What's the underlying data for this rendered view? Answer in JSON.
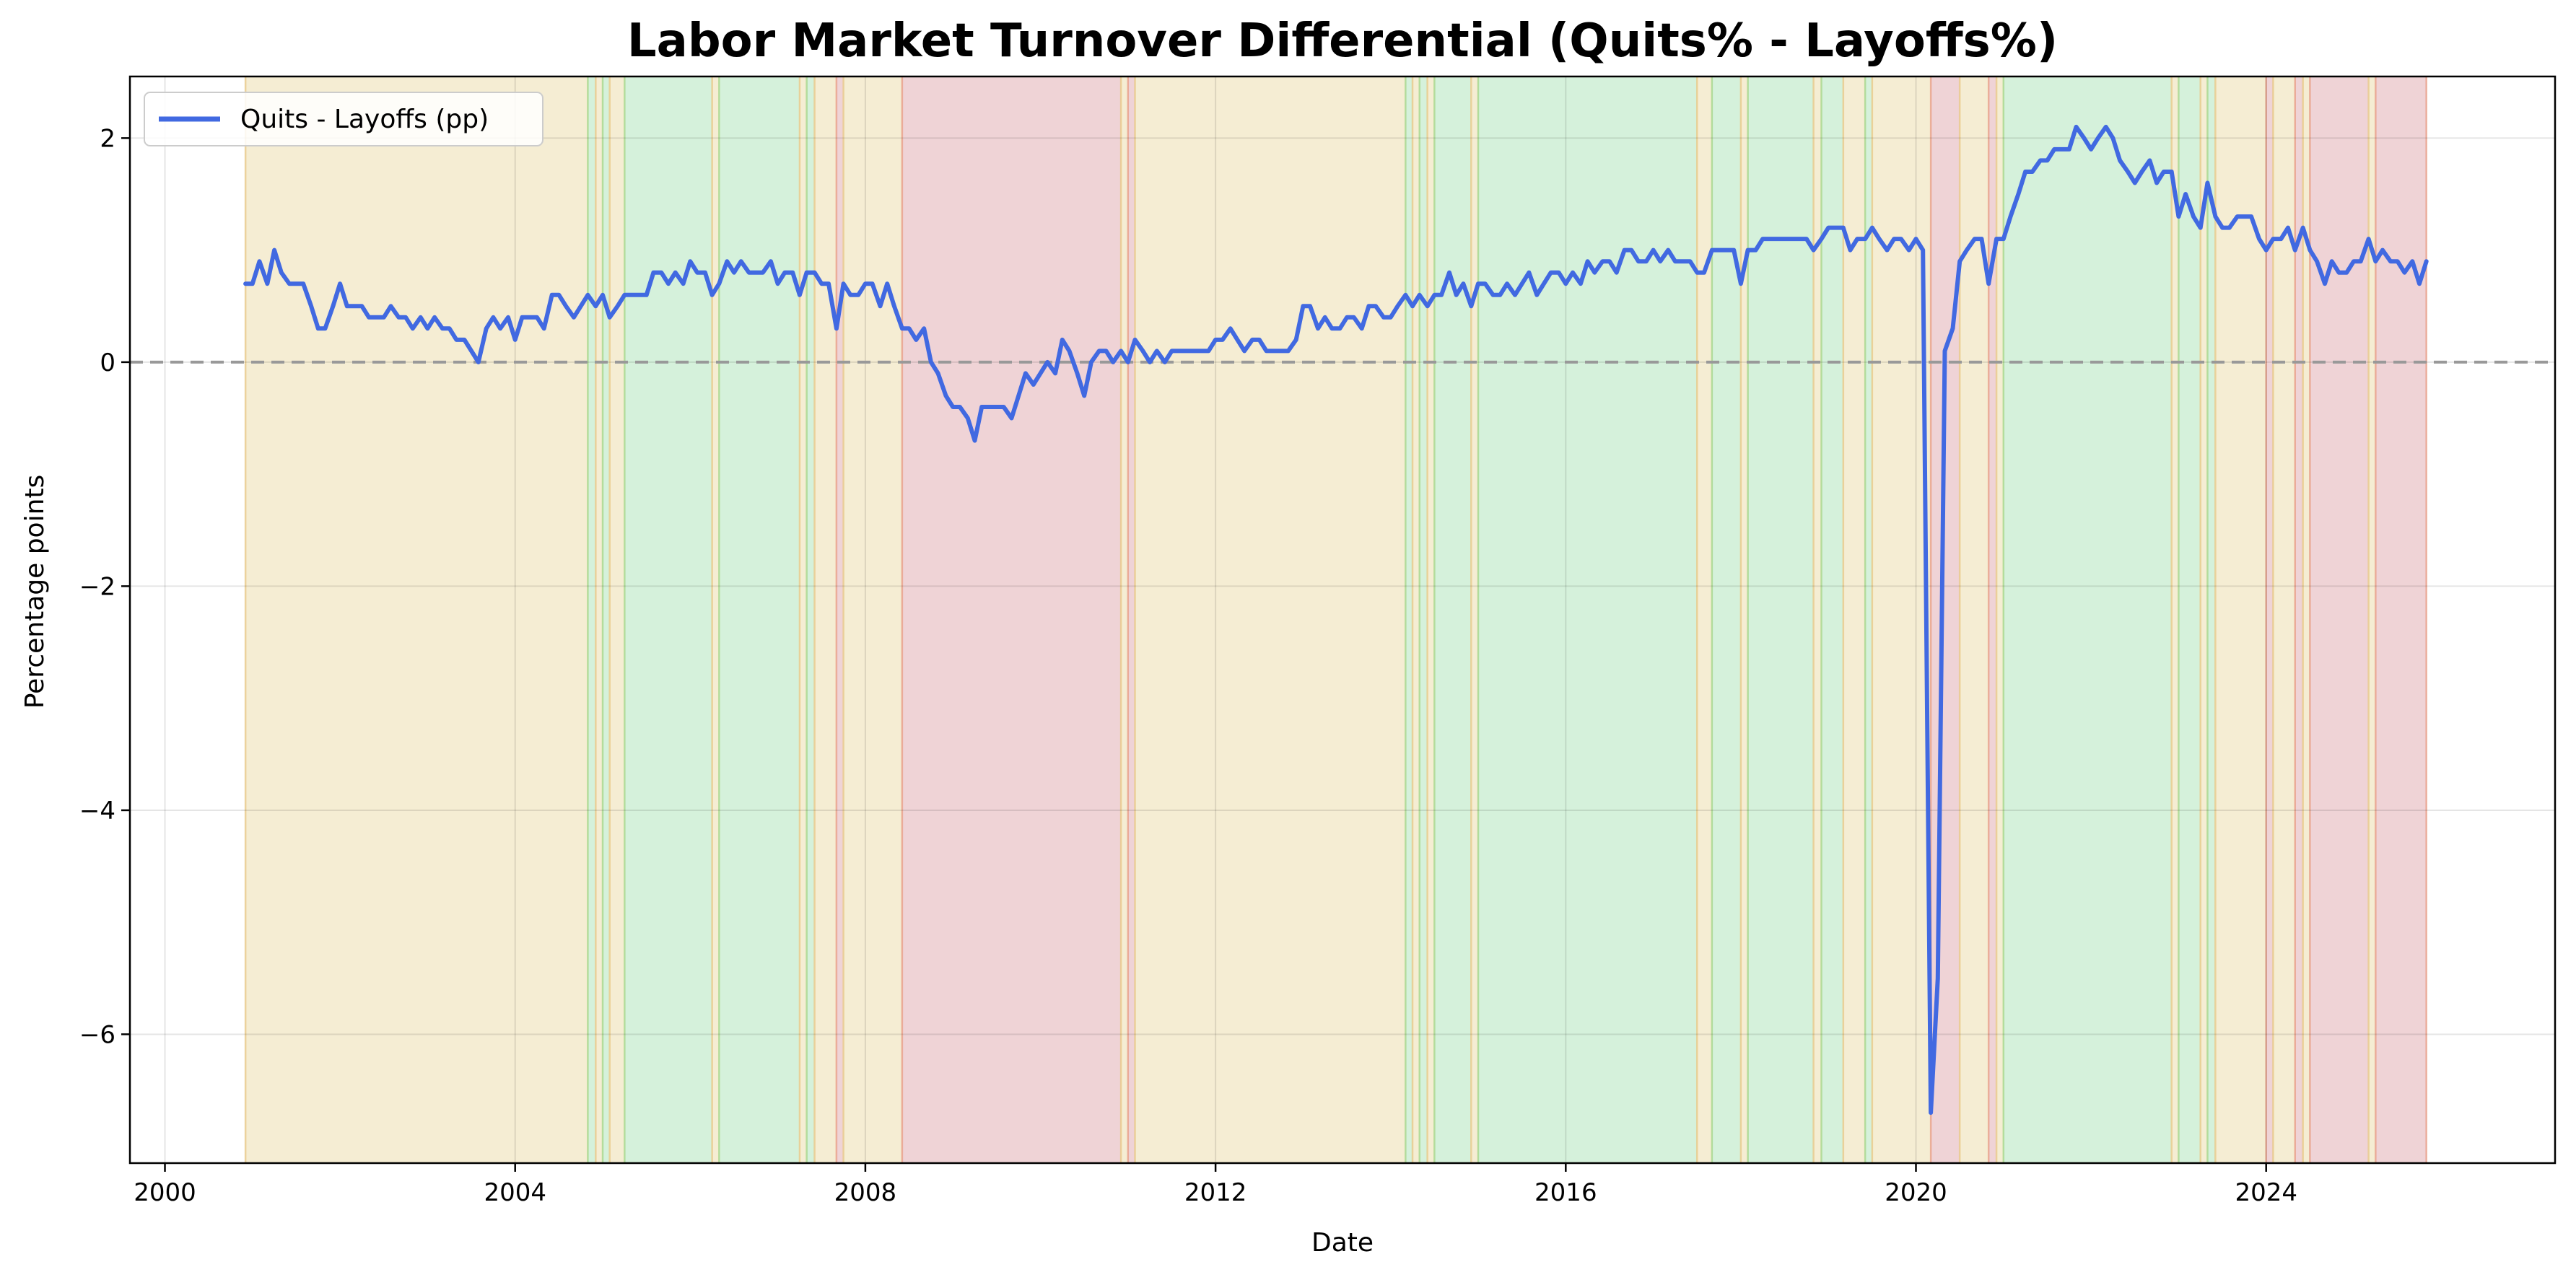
{
  "chart_data": {
    "type": "line",
    "title": "Labor Market Turnover Differential (Quits% - Layoffs%)",
    "xlabel": "Date",
    "ylabel": "Percentage points",
    "xlim": [
      1999.6,
      2027.3
    ],
    "ylim": [
      -7.15,
      2.55
    ],
    "x_ticks": [
      2000,
      2004,
      2008,
      2012,
      2016,
      2020,
      2024
    ],
    "x_tick_labels": [
      "2000",
      "2004",
      "2008",
      "2012",
      "2016",
      "2020",
      "2024"
    ],
    "y_ticks": [
      2,
      0,
      -2,
      -4,
      -6
    ],
    "y_tick_labels": [
      "2",
      "0",
      "−2",
      "−4",
      "−6"
    ],
    "grid": true,
    "legend_position": "top-left",
    "zero_line": {
      "y": 0,
      "style": "dashed",
      "color": "#999999"
    },
    "line_color": "#4169e1",
    "regime_colors": {
      "yellow": "#f5edd3",
      "green": "#d5f1db",
      "red": "#efd3d6"
    },
    "regime_edge_colors": {
      "yellow": "#e9c98a",
      "green": "#a8d78c",
      "red": "#e8a08a"
    },
    "regimes": [
      {
        "start": 2000.92,
        "end": 2004.83,
        "color": "yellow"
      },
      {
        "start": 2004.83,
        "end": 2004.92,
        "color": "green"
      },
      {
        "start": 2004.92,
        "end": 2005.0,
        "color": "yellow"
      },
      {
        "start": 2005.0,
        "end": 2005.08,
        "color": "green"
      },
      {
        "start": 2005.08,
        "end": 2005.25,
        "color": "yellow"
      },
      {
        "start": 2005.25,
        "end": 2006.25,
        "color": "green"
      },
      {
        "start": 2006.25,
        "end": 2006.33,
        "color": "yellow"
      },
      {
        "start": 2006.33,
        "end": 2007.25,
        "color": "green"
      },
      {
        "start": 2007.25,
        "end": 2007.33,
        "color": "yellow"
      },
      {
        "start": 2007.33,
        "end": 2007.42,
        "color": "green"
      },
      {
        "start": 2007.42,
        "end": 2007.67,
        "color": "yellow"
      },
      {
        "start": 2007.67,
        "end": 2007.75,
        "color": "red"
      },
      {
        "start": 2007.75,
        "end": 2008.42,
        "color": "yellow"
      },
      {
        "start": 2008.42,
        "end": 2010.92,
        "color": "red"
      },
      {
        "start": 2010.92,
        "end": 2011.0,
        "color": "yellow"
      },
      {
        "start": 2011.0,
        "end": 2011.08,
        "color": "red"
      },
      {
        "start": 2011.08,
        "end": 2014.17,
        "color": "yellow"
      },
      {
        "start": 2014.17,
        "end": 2014.25,
        "color": "green"
      },
      {
        "start": 2014.25,
        "end": 2014.33,
        "color": "yellow"
      },
      {
        "start": 2014.33,
        "end": 2014.42,
        "color": "green"
      },
      {
        "start": 2014.42,
        "end": 2014.5,
        "color": "yellow"
      },
      {
        "start": 2014.5,
        "end": 2014.92,
        "color": "green"
      },
      {
        "start": 2014.92,
        "end": 2015.0,
        "color": "yellow"
      },
      {
        "start": 2015.0,
        "end": 2017.5,
        "color": "green"
      },
      {
        "start": 2017.5,
        "end": 2017.67,
        "color": "yellow"
      },
      {
        "start": 2017.67,
        "end": 2018.0,
        "color": "green"
      },
      {
        "start": 2018.0,
        "end": 2018.08,
        "color": "yellow"
      },
      {
        "start": 2018.08,
        "end": 2018.83,
        "color": "green"
      },
      {
        "start": 2018.83,
        "end": 2018.92,
        "color": "yellow"
      },
      {
        "start": 2018.92,
        "end": 2019.17,
        "color": "green"
      },
      {
        "start": 2019.17,
        "end": 2019.42,
        "color": "yellow"
      },
      {
        "start": 2019.42,
        "end": 2019.5,
        "color": "green"
      },
      {
        "start": 2019.5,
        "end": 2020.17,
        "color": "yellow"
      },
      {
        "start": 2020.17,
        "end": 2020.5,
        "color": "red"
      },
      {
        "start": 2020.5,
        "end": 2020.83,
        "color": "yellow"
      },
      {
        "start": 2020.83,
        "end": 2020.92,
        "color": "red"
      },
      {
        "start": 2020.92,
        "end": 2021.0,
        "color": "yellow"
      },
      {
        "start": 2021.0,
        "end": 2022.92,
        "color": "green"
      },
      {
        "start": 2022.92,
        "end": 2023.0,
        "color": "yellow"
      },
      {
        "start": 2023.0,
        "end": 2023.25,
        "color": "green"
      },
      {
        "start": 2023.25,
        "end": 2023.33,
        "color": "yellow"
      },
      {
        "start": 2023.33,
        "end": 2023.42,
        "color": "green"
      },
      {
        "start": 2023.42,
        "end": 2024.0,
        "color": "yellow"
      },
      {
        "start": 2024.0,
        "end": 2024.08,
        "color": "red"
      },
      {
        "start": 2024.08,
        "end": 2024.33,
        "color": "yellow"
      },
      {
        "start": 2024.33,
        "end": 2024.42,
        "color": "red"
      },
      {
        "start": 2024.42,
        "end": 2024.5,
        "color": "yellow"
      },
      {
        "start": 2024.5,
        "end": 2025.17,
        "color": "red"
      },
      {
        "start": 2025.17,
        "end": 2025.25,
        "color": "yellow"
      },
      {
        "start": 2025.25,
        "end": 2025.83,
        "color": "red"
      }
    ],
    "series": [
      {
        "name": "Quits - Layoffs (pp)",
        "x": [
          2000.92,
          2001.0,
          2001.08,
          2001.17,
          2001.25,
          2001.33,
          2001.42,
          2001.5,
          2001.58,
          2001.67,
          2001.75,
          2001.83,
          2001.92,
          2002.0,
          2002.08,
          2002.17,
          2002.25,
          2002.33,
          2002.42,
          2002.5,
          2002.58,
          2002.67,
          2002.75,
          2002.83,
          2002.92,
          2003.0,
          2003.08,
          2003.17,
          2003.25,
          2003.33,
          2003.42,
          2003.5,
          2003.58,
          2003.67,
          2003.75,
          2003.83,
          2003.92,
          2004.0,
          2004.08,
          2004.17,
          2004.25,
          2004.33,
          2004.42,
          2004.5,
          2004.58,
          2004.67,
          2004.75,
          2004.83,
          2004.92,
          2005.0,
          2005.08,
          2005.17,
          2005.25,
          2005.33,
          2005.42,
          2005.5,
          2005.58,
          2005.67,
          2005.75,
          2005.83,
          2005.92,
          2006.0,
          2006.08,
          2006.17,
          2006.25,
          2006.33,
          2006.42,
          2006.5,
          2006.58,
          2006.67,
          2006.75,
          2006.83,
          2006.92,
          2007.0,
          2007.08,
          2007.17,
          2007.25,
          2007.33,
          2007.42,
          2007.5,
          2007.58,
          2007.67,
          2007.75,
          2007.83,
          2007.92,
          2008.0,
          2008.08,
          2008.17,
          2008.25,
          2008.33,
          2008.42,
          2008.5,
          2008.58,
          2008.67,
          2008.75,
          2008.83,
          2008.92,
          2009.0,
          2009.08,
          2009.17,
          2009.25,
          2009.33,
          2009.42,
          2009.5,
          2009.58,
          2009.67,
          2009.75,
          2009.83,
          2009.92,
          2010.0,
          2010.08,
          2010.17,
          2010.25,
          2010.33,
          2010.42,
          2010.5,
          2010.58,
          2010.67,
          2010.75,
          2010.83,
          2010.92,
          2011.0,
          2011.08,
          2011.17,
          2011.25,
          2011.33,
          2011.42,
          2011.5,
          2011.58,
          2011.67,
          2011.75,
          2011.83,
          2011.92,
          2012.0,
          2012.08,
          2012.17,
          2012.25,
          2012.33,
          2012.42,
          2012.5,
          2012.58,
          2012.67,
          2012.75,
          2012.83,
          2012.92,
          2013.0,
          2013.08,
          2013.17,
          2013.25,
          2013.33,
          2013.42,
          2013.5,
          2013.58,
          2013.67,
          2013.75,
          2013.83,
          2013.92,
          2014.0,
          2014.08,
          2014.17,
          2014.25,
          2014.33,
          2014.42,
          2014.5,
          2014.58,
          2014.67,
          2014.75,
          2014.83,
          2014.92,
          2015.0,
          2015.08,
          2015.17,
          2015.25,
          2015.33,
          2015.42,
          2015.5,
          2015.58,
          2015.67,
          2015.75,
          2015.83,
          2015.92,
          2016.0,
          2016.08,
          2016.17,
          2016.25,
          2016.33,
          2016.42,
          2016.5,
          2016.58,
          2016.67,
          2016.75,
          2016.83,
          2016.92,
          2017.0,
          2017.08,
          2017.17,
          2017.25,
          2017.33,
          2017.42,
          2017.5,
          2017.58,
          2017.67,
          2017.75,
          2017.83,
          2017.92,
          2018.0,
          2018.08,
          2018.17,
          2018.25,
          2018.33,
          2018.42,
          2018.5,
          2018.58,
          2018.67,
          2018.75,
          2018.83,
          2018.92,
          2019.0,
          2019.08,
          2019.17,
          2019.25,
          2019.33,
          2019.42,
          2019.5,
          2019.58,
          2019.67,
          2019.75,
          2019.83,
          2019.92,
          2020.0,
          2020.08,
          2020.17,
          2020.25,
          2020.33,
          2020.42,
          2020.5,
          2020.58,
          2020.67,
          2020.75,
          2020.83,
          2020.92,
          2021.0,
          2021.08,
          2021.17,
          2021.25,
          2021.33,
          2021.42,
          2021.5,
          2021.58,
          2021.67,
          2021.75,
          2021.83,
          2021.92,
          2022.0,
          2022.08,
          2022.17,
          2022.25,
          2022.33,
          2022.42,
          2022.5,
          2022.58,
          2022.67,
          2022.75,
          2022.83,
          2022.92,
          2023.0,
          2023.08,
          2023.17,
          2023.25,
          2023.33,
          2023.42,
          2023.5,
          2023.58,
          2023.67,
          2023.75,
          2023.83,
          2023.92,
          2024.0,
          2024.08,
          2024.17,
          2024.25,
          2024.33,
          2024.42,
          2024.5,
          2024.58,
          2024.67,
          2024.75,
          2024.83,
          2024.92,
          2025.0,
          2025.08,
          2025.17,
          2025.25,
          2025.33,
          2025.42,
          2025.5,
          2025.58,
          2025.67,
          2025.75,
          2025.83
        ],
        "y": [
          0.7,
          0.7,
          0.9,
          0.7,
          1.0,
          0.8,
          0.7,
          0.7,
          0.7,
          0.5,
          0.3,
          0.3,
          0.5,
          0.7,
          0.5,
          0.5,
          0.5,
          0.4,
          0.4,
          0.4,
          0.5,
          0.4,
          0.4,
          0.3,
          0.4,
          0.3,
          0.4,
          0.3,
          0.3,
          0.2,
          0.2,
          0.1,
          0.0,
          0.3,
          0.4,
          0.3,
          0.4,
          0.2,
          0.4,
          0.4,
          0.4,
          0.3,
          0.6,
          0.6,
          0.5,
          0.4,
          0.5,
          0.6,
          0.5,
          0.6,
          0.4,
          0.5,
          0.6,
          0.6,
          0.6,
          0.6,
          0.8,
          0.8,
          0.7,
          0.8,
          0.7,
          0.9,
          0.8,
          0.8,
          0.6,
          0.7,
          0.9,
          0.8,
          0.9,
          0.8,
          0.8,
          0.8,
          0.9,
          0.7,
          0.8,
          0.8,
          0.6,
          0.8,
          0.8,
          0.7,
          0.7,
          0.3,
          0.7,
          0.6,
          0.6,
          0.7,
          0.7,
          0.5,
          0.7,
          0.5,
          0.3,
          0.3,
          0.2,
          0.3,
          0.0,
          -0.1,
          -0.3,
          -0.4,
          -0.4,
          -0.5,
          -0.7,
          -0.4,
          -0.4,
          -0.4,
          -0.4,
          -0.5,
          -0.3,
          -0.1,
          -0.2,
          -0.1,
          0.0,
          -0.1,
          0.2,
          0.1,
          -0.1,
          -0.3,
          0.0,
          0.1,
          0.1,
          0.0,
          0.1,
          0.0,
          0.2,
          0.1,
          0.0,
          0.1,
          0.0,
          0.1,
          0.1,
          0.1,
          0.1,
          0.1,
          0.1,
          0.2,
          0.2,
          0.3,
          0.2,
          0.1,
          0.2,
          0.2,
          0.1,
          0.1,
          0.1,
          0.1,
          0.2,
          0.5,
          0.5,
          0.3,
          0.4,
          0.3,
          0.3,
          0.4,
          0.4,
          0.3,
          0.5,
          0.5,
          0.4,
          0.4,
          0.5,
          0.6,
          0.5,
          0.6,
          0.5,
          0.6,
          0.6,
          0.8,
          0.6,
          0.7,
          0.5,
          0.7,
          0.7,
          0.6,
          0.6,
          0.7,
          0.6,
          0.7,
          0.8,
          0.6,
          0.7,
          0.8,
          0.8,
          0.7,
          0.8,
          0.7,
          0.9,
          0.8,
          0.9,
          0.9,
          0.8,
          1.0,
          1.0,
          0.9,
          0.9,
          1.0,
          0.9,
          1.0,
          0.9,
          0.9,
          0.9,
          0.8,
          0.8,
          1.0,
          1.0,
          1.0,
          1.0,
          0.7,
          1.0,
          1.0,
          1.1,
          1.1,
          1.1,
          1.1,
          1.1,
          1.1,
          1.1,
          1.0,
          1.1,
          1.2,
          1.2,
          1.2,
          1.0,
          1.1,
          1.1,
          1.2,
          1.1,
          1.0,
          1.1,
          1.1,
          1.0,
          1.1,
          1.0,
          -6.7,
          -5.5,
          0.1,
          0.3,
          0.9,
          1.0,
          1.1,
          1.1,
          0.7,
          1.1,
          1.1,
          1.3,
          1.5,
          1.7,
          1.7,
          1.8,
          1.8,
          1.9,
          1.9,
          1.9,
          2.1,
          2.0,
          1.9,
          2.0,
          2.1,
          2.0,
          1.8,
          1.7,
          1.6,
          1.7,
          1.8,
          1.6,
          1.7,
          1.7,
          1.3,
          1.5,
          1.3,
          1.2,
          1.6,
          1.3,
          1.2,
          1.2,
          1.3,
          1.3,
          1.3,
          1.1,
          1.0,
          1.1,
          1.1,
          1.2,
          1.0,
          1.2,
          1.0,
          0.9,
          0.7,
          0.9,
          0.8,
          0.8,
          0.9,
          0.9,
          1.1,
          0.9,
          1.0,
          0.9,
          0.9,
          0.8,
          0.9,
          0.7,
          0.9
        ]
      }
    ]
  }
}
